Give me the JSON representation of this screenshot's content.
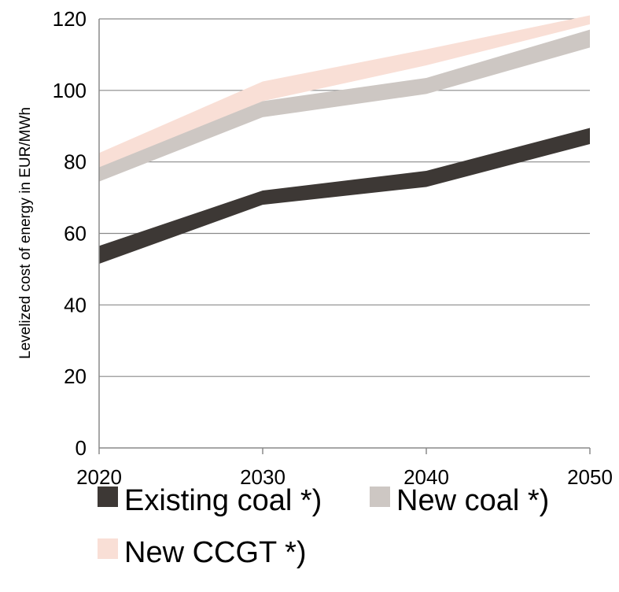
{
  "chart_data": {
    "type": "line",
    "title": "",
    "xlabel": "",
    "ylabel": "Levelized cost of energy in EUR/MWh",
    "x": [
      2020,
      2030,
      2040,
      2050
    ],
    "xticks": [
      "2020",
      "2030",
      "2040",
      "2050"
    ],
    "ylim": [
      0,
      120
    ],
    "yticks": [
      "0",
      "20",
      "40",
      "60",
      "80",
      "100",
      "120"
    ],
    "grid": true,
    "legend_position": "bottom",
    "series": [
      {
        "name": "Existing coal *)",
        "color": "#3d3835",
        "low": [
          51.5,
          68,
          73,
          85
        ],
        "high": [
          56.5,
          72,
          77.5,
          89.5
        ]
      },
      {
        "name": "New coal *)",
        "color": "#cdc7c3",
        "low": [
          74.5,
          92.5,
          99,
          112
        ],
        "high": [
          78.5,
          97,
          103.5,
          117
        ]
      },
      {
        "name": "New CCGT *)",
        "color": "#f9dfd6",
        "low": [
          78,
          97,
          107,
          118.5
        ],
        "high": [
          82.5,
          102.5,
          111.5,
          121
        ]
      }
    ]
  }
}
